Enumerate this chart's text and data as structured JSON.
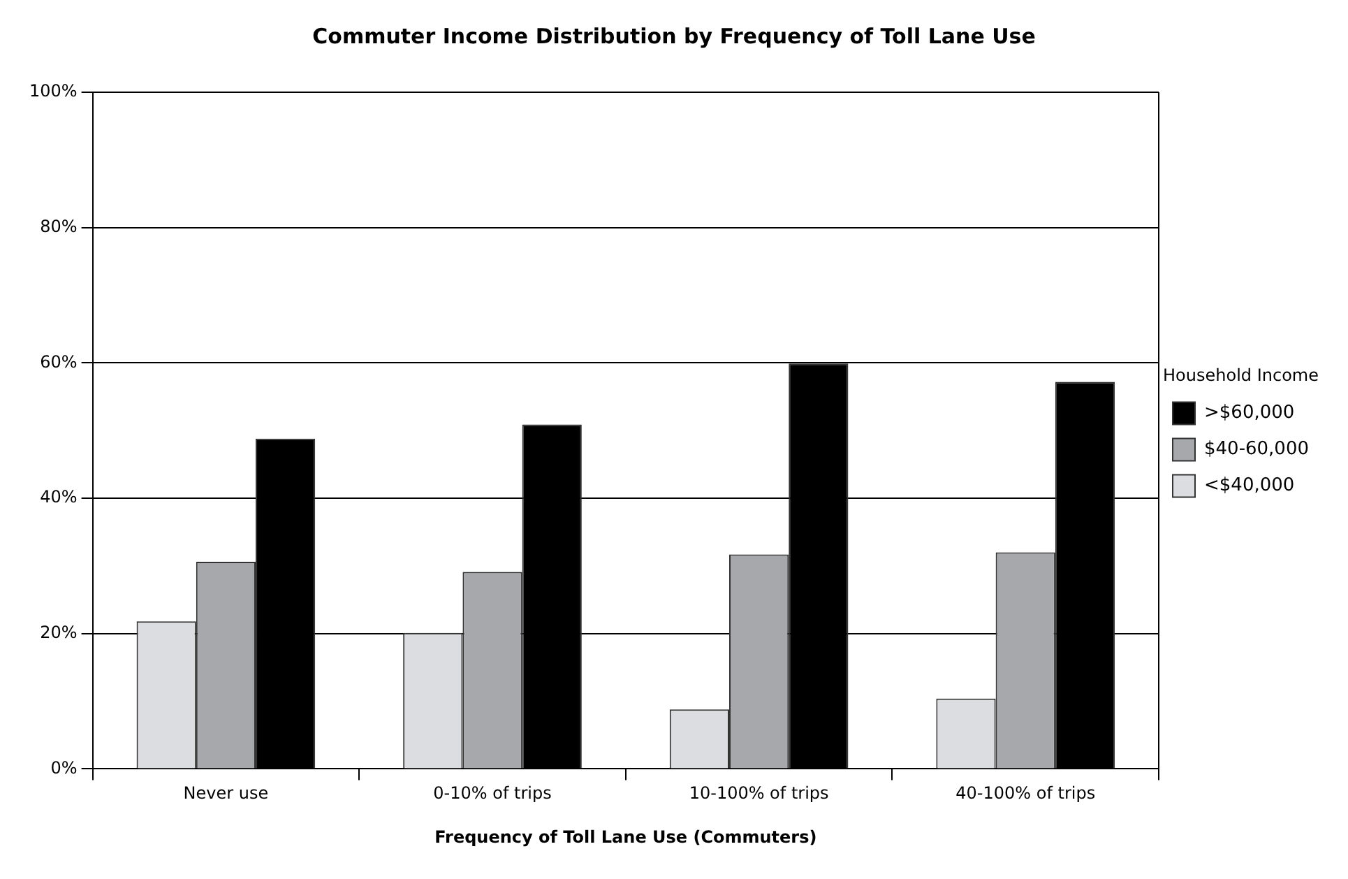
{
  "chart_data": {
    "type": "bar",
    "title": "Commuter Income Distribution by Frequency of Toll Lane Use",
    "xlabel": "Frequency of Toll Lane Use (Commuters)",
    "legend_title": "Household Income",
    "categories": [
      "Never use",
      "0-10% of trips",
      "10-100% of trips",
      "40-100% of trips"
    ],
    "series": [
      {
        "name": "<$40,000",
        "color": "#dcdde0",
        "values": [
          21.8,
          20.1,
          8.8,
          10.4
        ]
      },
      {
        "name": "$40-60,000",
        "color": "#a7a8ac",
        "values": [
          30.6,
          29.1,
          31.7,
          32.0
        ]
      },
      {
        "name": ">$60,000",
        "color": "#000000",
        "values": [
          48.8,
          50.9,
          59.9,
          57.2
        ]
      }
    ],
    "ylim": [
      0,
      100
    ],
    "yticks": [
      {
        "value": 0,
        "label": "0%"
      },
      {
        "value": 20,
        "label": "20%"
      },
      {
        "value": 40,
        "label": "40%"
      },
      {
        "value": 60,
        "label": "60%"
      },
      {
        "value": 80,
        "label": "80%"
      },
      {
        "value": 100,
        "label": "100%"
      }
    ],
    "grid": "y",
    "legend": "right"
  }
}
